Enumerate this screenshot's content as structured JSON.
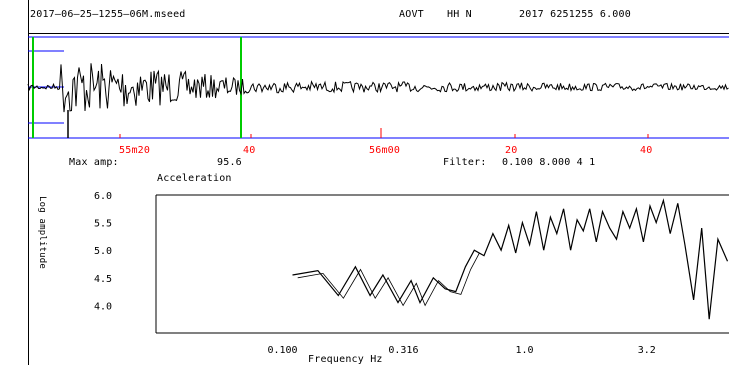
{
  "header": {
    "filename": "2017–06–25–1255–06M.mseed",
    "station": "AOVT",
    "channel": "HH N",
    "time": "2017 6251255 6.000"
  },
  "waveform": {
    "time_labels": [
      "55m20",
      "40",
      "56m00",
      "20",
      "40"
    ],
    "max_amp_label": "Max amp:",
    "max_amp_value": "95.6",
    "filter_label": "Filter:",
    "filter_values": "0.100  8.000  4 1"
  },
  "spectrum": {
    "title": "Acceleration",
    "ylabel": "Log amplitude",
    "xlabel": "Frequency  Hz",
    "colors": {
      "trace": "#000000",
      "axis_blue": "#0000ff",
      "marker_green": "#00cc00",
      "tick_red": "#ff0000"
    }
  },
  "chart_data": {
    "type": "line",
    "title": "Acceleration",
    "xlabel": "Frequency  Hz",
    "ylabel": "Log amplitude",
    "x_scale": "log",
    "x_ticks": [
      "0.100",
      "0.316",
      "1.0",
      "3.2"
    ],
    "y_ticks": [
      "6.0",
      "5.5",
      "5.0",
      "4.5",
      "4.0"
    ],
    "xlim": [
      0.03,
      7.0
    ],
    "ylim": [
      3.5,
      6.0
    ],
    "series": [
      {
        "x": [
          0.11,
          0.14,
          0.17,
          0.2,
          0.23,
          0.26,
          0.3,
          0.34,
          0.37,
          0.42,
          0.47,
          0.52,
          0.57,
          0.62,
          0.68,
          0.74,
          0.8,
          0.86,
          0.92,
          0.98,
          1.05,
          1.12,
          1.2,
          1.28,
          1.36,
          1.45,
          1.55,
          1.65,
          1.75,
          1.86,
          1.98,
          2.1,
          2.25,
          2.4,
          2.55,
          2.72,
          2.9,
          3.1,
          3.3,
          3.5,
          3.75,
          4.0,
          4.3,
          4.6,
          5.0,
          5.4,
          5.8,
          6.3,
          6.9
        ],
        "values": [
          4.55,
          4.63,
          4.18,
          4.7,
          4.18,
          4.55,
          4.05,
          4.45,
          4.05,
          4.5,
          4.3,
          4.25,
          4.7,
          5.0,
          4.9,
          5.3,
          5.0,
          5.45,
          4.95,
          5.5,
          5.1,
          5.7,
          5.0,
          5.6,
          5.3,
          5.75,
          5.0,
          5.55,
          5.35,
          5.75,
          5.15,
          5.7,
          5.4,
          5.2,
          5.7,
          5.4,
          5.75,
          5.15,
          5.8,
          5.5,
          5.9,
          5.3,
          5.85,
          5.1,
          4.1,
          5.4,
          3.75,
          5.2,
          4.8
        ]
      }
    ]
  }
}
